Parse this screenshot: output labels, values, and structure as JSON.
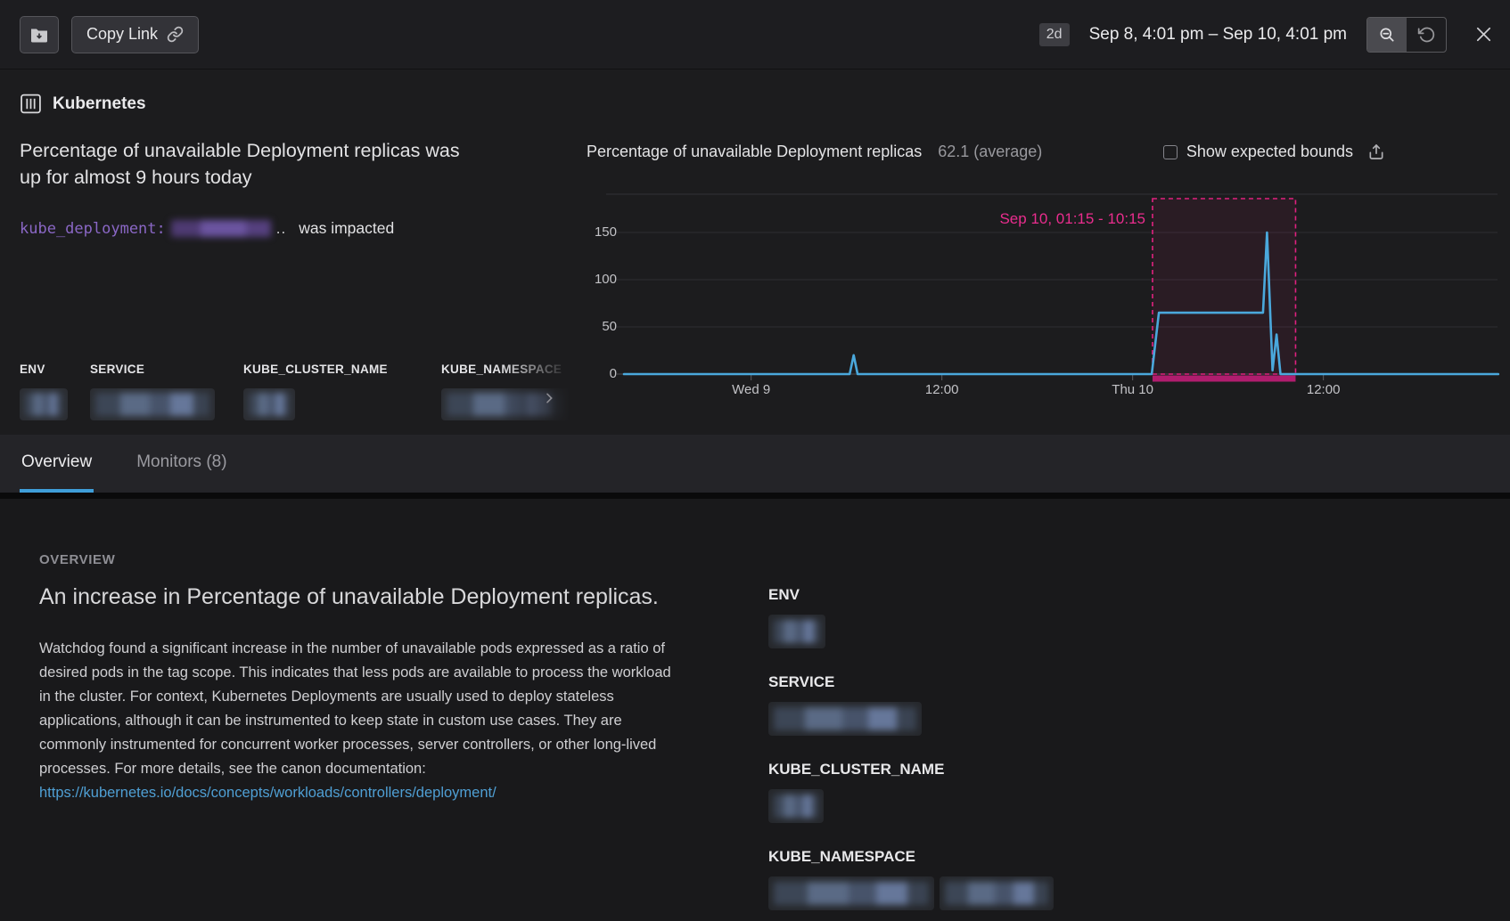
{
  "topbar": {
    "copy_link_label": "Copy Link",
    "range_badge": "2d",
    "date_range": "Sep 8, 4:01 pm – Sep 10, 4:01 pm"
  },
  "header": {
    "integration": "Kubernetes",
    "headline": "Percentage of unavailable Deployment replicas was up for almost 9 hours today",
    "tag_key": "kube_deployment:",
    "tag_suffix": "..",
    "impact_text": "was impacted",
    "facet_labels": [
      "ENV",
      "SERVICE",
      "KUBE_CLUSTER_NAME",
      "KUBE_NAMESPACE"
    ]
  },
  "chart": {
    "title": "Percentage of unavailable Deployment replicas",
    "value_summary": "62.1 (average)",
    "bounds_checkbox_label": "Show expected bounds",
    "bounds_checkbox_checked": false,
    "annotation_label": "Sep 10, 01:15 - 10:15",
    "chart_data": {
      "type": "line",
      "title": "Percentage of unavailable Deployment replicas",
      "x_range": [
        "Sep 8, 4:01 pm",
        "Sep 10, 4:01 pm"
      ],
      "x_range_hours": 48,
      "ylim": [
        0,
        185
      ],
      "yticks": [
        150,
        100,
        50,
        0
      ],
      "xticks": [
        {
          "label": "Wed 9",
          "hour": 8
        },
        {
          "label": "12:00",
          "hour": 20
        },
        {
          "label": "Thu 10",
          "hour": 32
        },
        {
          "label": "12:00",
          "hour": 44
        }
      ],
      "grid": true,
      "legend": "none",
      "series": [
        {
          "name": "Percentage of unavailable Deployment replicas",
          "color": "#4aa8dc",
          "average": 62.1,
          "points": [
            [
              0,
              0
            ],
            [
              14.2,
              0
            ],
            [
              14.45,
              20
            ],
            [
              14.7,
              0
            ],
            [
              33.2,
              0
            ],
            [
              33.65,
              65
            ],
            [
              40.2,
              65
            ],
            [
              40.45,
              150
            ],
            [
              40.8,
              4
            ],
            [
              41.05,
              42
            ],
            [
              41.3,
              0
            ],
            [
              55,
              0
            ]
          ]
        }
      ],
      "annotation_region": {
        "label": "Sep 10, 01:15 - 10:15",
        "start_hour": 33.25,
        "end_hour": 42.25,
        "color": "#e0217f"
      }
    }
  },
  "tabs": {
    "overview": "Overview",
    "monitors": "Monitors (8)"
  },
  "overview": {
    "section_label": "OVERVIEW",
    "heading": "An increase in Percentage of unavailable Deployment replicas.",
    "body": "Watchdog found a significant increase in the number of unavailable pods expressed as a ratio of desired pods in the tag scope. This indicates that less pods are available to process the workload in the cluster. For context, Kubernetes Deployments are usually used to deploy stateless applications, although it can be instrumented to keep state in custom use cases. They are commonly instrumented for concurrent worker processes, server controllers, or other long-lived processes. For more details, see the canon documentation:",
    "link": "https://kubernetes.io/docs/concepts/workloads/controllers/deployment/",
    "facet_labels": [
      "ENV",
      "SERVICE",
      "KUBE_CLUSTER_NAME",
      "KUBE_NAMESPACE"
    ]
  },
  "colors": {
    "accent_blue": "#3f9ed9",
    "line_blue": "#4aa8dc",
    "annotation_pink": "#e0217f",
    "impact_bar_magenta": "#b01d6e",
    "tag_purple": "#8a67c5",
    "link_blue": "#4f9fd4"
  },
  "icons": [
    "folder-save-icon",
    "link-icon",
    "zoom-out-icon",
    "reset-zoom-icon",
    "close-icon",
    "kubernetes-icon",
    "expected-bounds-checkbox",
    "export-icon",
    "chevron-right-icon"
  ]
}
